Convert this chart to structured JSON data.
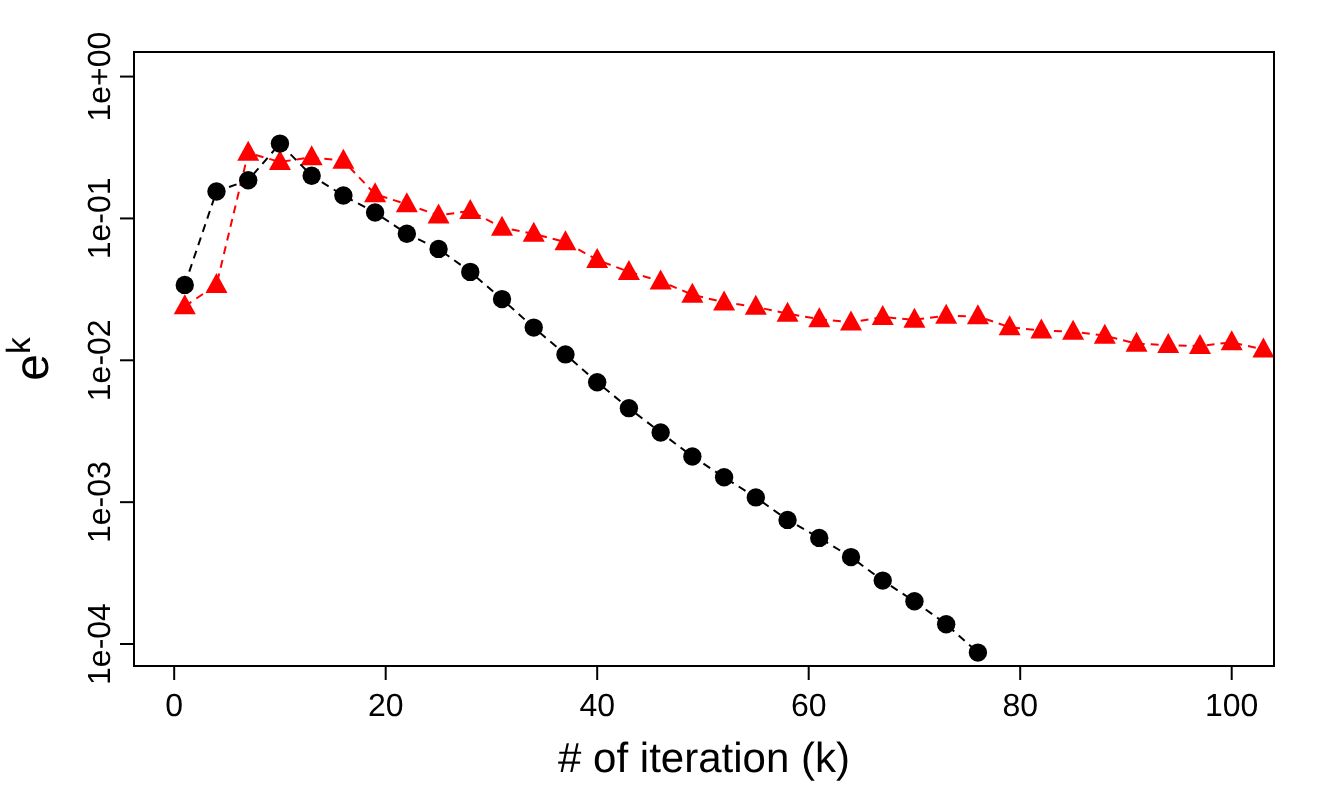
{
  "chart_data": {
    "type": "line",
    "xlabel": "# of iteration (k)",
    "ylabel": "e$^{k}$",
    "log": "y",
    "grid": false,
    "line_style": "dashed",
    "xlim": [
      -3.8,
      104
    ],
    "xticks": [
      0,
      20,
      40,
      60,
      80,
      100
    ],
    "ylim": [
      7e-05,
      1.49
    ],
    "yticks": [
      {
        "value": 1,
        "label": "1e+00"
      },
      {
        "value": 0.1,
        "label": "1e-01"
      },
      {
        "value": 0.01,
        "label": "1e-02"
      },
      {
        "value": 0.001,
        "label": "1e-03"
      },
      {
        "value": 0.0001,
        "label": "1e-04"
      }
    ],
    "series": [
      {
        "color": "#ff0000",
        "marker": "triangle",
        "x": [
          1,
          4,
          7,
          10,
          13,
          16,
          19,
          22,
          25,
          28,
          31,
          34,
          37,
          40,
          43,
          46,
          49,
          52,
          55,
          58,
          61,
          64,
          67,
          70,
          73,
          76,
          79,
          82,
          85,
          88,
          91,
          94,
          97,
          100,
          103
        ],
        "values": [
          0.024,
          0.034,
          0.29,
          0.25,
          0.27,
          0.255,
          0.148,
          0.126,
          0.105,
          0.113,
          0.086,
          0.078,
          0.068,
          0.051,
          0.042,
          0.036,
          0.029,
          0.0256,
          0.0238,
          0.0213,
          0.0195,
          0.0185,
          0.0202,
          0.0193,
          0.0206,
          0.0204,
          0.0171,
          0.0162,
          0.0159,
          0.0149,
          0.0131,
          0.0128,
          0.0126,
          0.0134,
          0.0119
        ]
      },
      {
        "color": "#000000",
        "marker": "circle",
        "x": [
          1,
          4,
          7,
          10,
          13,
          16,
          19,
          22,
          25,
          28,
          31,
          34,
          37,
          40,
          43,
          46,
          49,
          52,
          55,
          58,
          61,
          64,
          67,
          70,
          73,
          76
        ],
        "values": [
          0.034,
          0.155,
          0.186,
          0.337,
          0.2,
          0.145,
          0.11,
          0.078,
          0.061,
          0.042,
          0.027,
          0.017,
          0.011,
          0.007,
          0.0046,
          0.0031,
          0.0021,
          0.0015,
          0.00108,
          0.00075,
          0.00056,
          0.00041,
          0.00028,
          0.0002,
          0.000138,
          8.7e-05
        ]
      }
    ]
  }
}
